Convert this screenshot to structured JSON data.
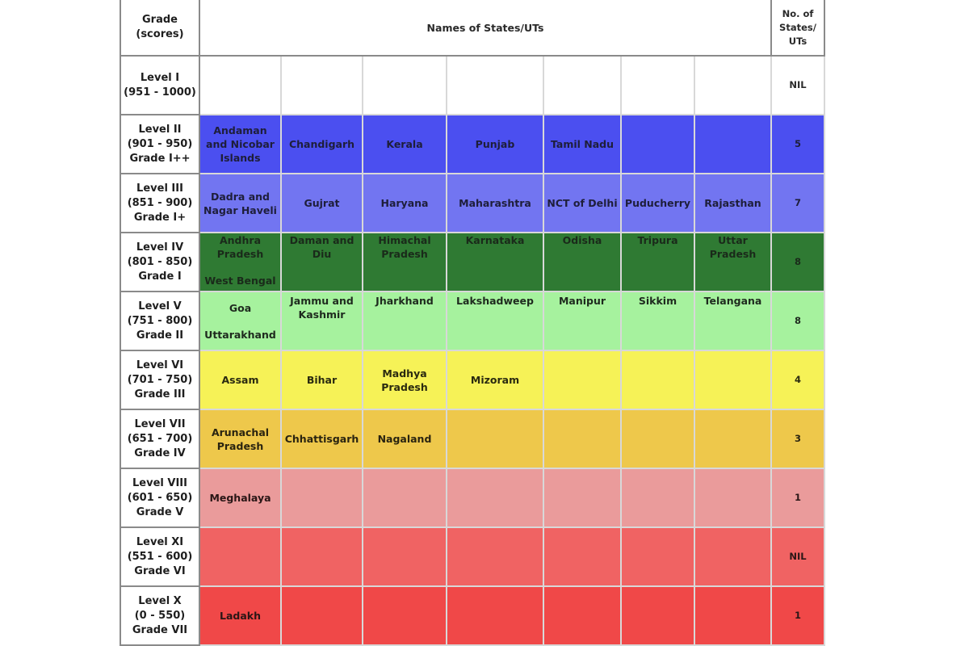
{
  "header": {
    "grade_label": "Grade",
    "grade_sub": "(scores)",
    "names_label": "Names of States/UTs",
    "count_label_1": "No. of",
    "count_label_2": "States/",
    "count_label_3": "UTs"
  },
  "rows": [
    {
      "level": "Level I",
      "scores": "(951 - 1000)",
      "grade": "",
      "count": "NIL"
    },
    {
      "level": "Level II",
      "scores": "(901 - 950)",
      "grade": "Grade I++",
      "count": "5",
      "states": [
        "Andaman and Nicobar Islands",
        "Chandigarh",
        "Kerala",
        "Punjab",
        "Tamil Nadu"
      ]
    },
    {
      "level": "Level III",
      "scores": "(851 - 900)",
      "grade": "Grade I+",
      "count": "7",
      "states": [
        "Dadra and Nagar Haveli",
        "Gujrat",
        "Haryana",
        "Maharashtra",
        "NCT of Delhi",
        "Puducherry",
        "Rajasthan"
      ]
    },
    {
      "level": "Level IV",
      "scores": "(801 - 850)",
      "grade": "Grade I",
      "count": "8",
      "states": [
        "Andhra Pradesh",
        "Daman and Diu",
        "Himachal Pradesh",
        "Karnataka",
        "Odisha",
        "Tripura",
        "Uttar Pradesh"
      ],
      "extra": "West Bengal"
    },
    {
      "level": "Level V",
      "scores": "(751 - 800)",
      "grade": "Grade II",
      "count": "8",
      "states": [
        "Goa",
        "Jammu and Kashmir",
        "Jharkhand",
        "Lakshadweep",
        "Manipur",
        "Sikkim",
        "Telangana"
      ],
      "extra": "Uttarakhand"
    },
    {
      "level": "Level VI",
      "scores": "(701 - 750)",
      "grade": "Grade III",
      "count": "4",
      "states": [
        "Assam",
        "Bihar",
        "Madhya Pradesh",
        "Mizoram"
      ]
    },
    {
      "level": "Level VII",
      "scores": "(651 - 700)",
      "grade": "Grade IV",
      "count": "3",
      "states": [
        "Arunachal Pradesh",
        "Chhattisgarh",
        "Nagaland"
      ]
    },
    {
      "level": "Level VIII",
      "scores": "(601 - 650)",
      "grade": "Grade V",
      "count": "1",
      "states": [
        "Meghalaya"
      ]
    },
    {
      "level": "Level XI",
      "scores": "(551 - 600)",
      "grade": "Grade VI",
      "count": "NIL"
    },
    {
      "level": "Level X",
      "scores": "(0 - 550)",
      "grade": "Grade VII",
      "count": "1",
      "states": [
        "Ladakh"
      ]
    }
  ]
}
